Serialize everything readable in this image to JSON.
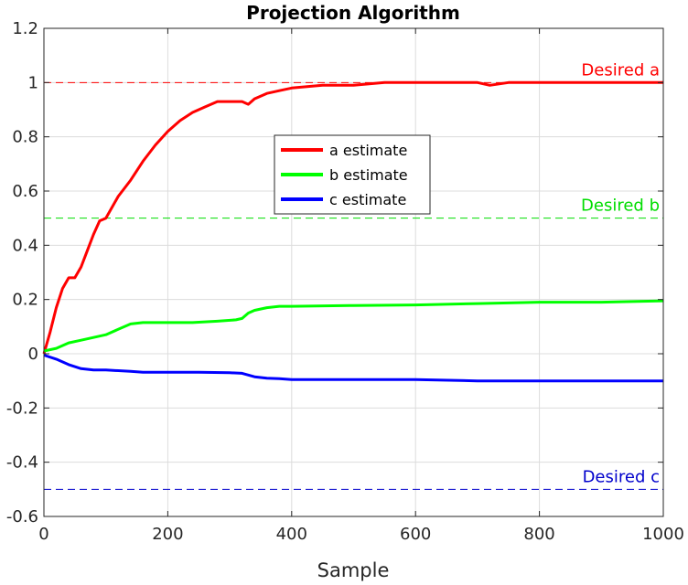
{
  "chart_data": {
    "type": "line",
    "title": "Projection Algorithm",
    "xlabel": "Sample",
    "ylabel": "",
    "xlim": [
      0,
      1000
    ],
    "ylim": [
      -0.6,
      1.2
    ],
    "xticks": [
      0,
      200,
      400,
      600,
      800,
      1000
    ],
    "xtick_labels": [
      "0",
      "200",
      "400",
      "600",
      "800",
      "1000"
    ],
    "yticks": [
      -0.6,
      -0.4,
      -0.2,
      0,
      0.2,
      0.4,
      0.6,
      0.8,
      1,
      1.2
    ],
    "ytick_labels": [
      "-0.6",
      "-0.4",
      "-0.2",
      "0",
      "0.2",
      "0.4",
      "0.6",
      "0.8",
      "1",
      "1.2"
    ],
    "grid": true,
    "legend_position": "upper-center",
    "series": [
      {
        "name": "a estimate",
        "color": "#ff0000",
        "x": [
          0,
          10,
          20,
          30,
          40,
          50,
          60,
          70,
          80,
          90,
          100,
          120,
          140,
          160,
          180,
          200,
          220,
          240,
          260,
          280,
          300,
          320,
          330,
          340,
          360,
          380,
          400,
          450,
          500,
          550,
          600,
          650,
          700,
          720,
          750,
          800,
          850,
          900,
          950,
          1000
        ],
        "y": [
          0.0,
          0.08,
          0.17,
          0.24,
          0.28,
          0.28,
          0.32,
          0.38,
          0.44,
          0.49,
          0.5,
          0.58,
          0.64,
          0.71,
          0.77,
          0.82,
          0.86,
          0.89,
          0.91,
          0.93,
          0.93,
          0.93,
          0.92,
          0.94,
          0.96,
          0.97,
          0.98,
          0.99,
          0.99,
          1.0,
          1.0,
          1.0,
          1.0,
          0.99,
          1.0,
          1.0,
          1.0,
          1.0,
          1.0,
          1.0
        ]
      },
      {
        "name": "b estimate",
        "color": "#00ff00",
        "x": [
          0,
          20,
          40,
          60,
          80,
          100,
          120,
          140,
          160,
          200,
          240,
          280,
          310,
          320,
          330,
          340,
          360,
          380,
          400,
          500,
          600,
          700,
          800,
          900,
          1000
        ],
        "y": [
          0.01,
          0.02,
          0.04,
          0.05,
          0.06,
          0.07,
          0.09,
          0.11,
          0.115,
          0.115,
          0.115,
          0.12,
          0.125,
          0.13,
          0.15,
          0.16,
          0.17,
          0.175,
          0.175,
          0.178,
          0.18,
          0.185,
          0.19,
          0.19,
          0.195
        ]
      },
      {
        "name": "c estimate",
        "color": "#0000ff",
        "x": [
          0,
          20,
          40,
          60,
          80,
          100,
          140,
          160,
          200,
          250,
          300,
          320,
          340,
          360,
          380,
          400,
          500,
          600,
          700,
          800,
          900,
          1000
        ],
        "y": [
          -0.005,
          -0.02,
          -0.04,
          -0.055,
          -0.06,
          -0.06,
          -0.065,
          -0.068,
          -0.068,
          -0.068,
          -0.07,
          -0.072,
          -0.085,
          -0.09,
          -0.092,
          -0.095,
          -0.095,
          -0.095,
          -0.1,
          -0.1,
          -0.1,
          -0.1
        ]
      }
    ],
    "reference_lines": [
      {
        "label": "Desired a",
        "y": 1,
        "color": "#ff0000"
      },
      {
        "label": "Desired b",
        "y": 0.5,
        "color": "#00dd00"
      },
      {
        "label": "Desired c",
        "y": -0.5,
        "color": "#0000cc"
      }
    ]
  }
}
